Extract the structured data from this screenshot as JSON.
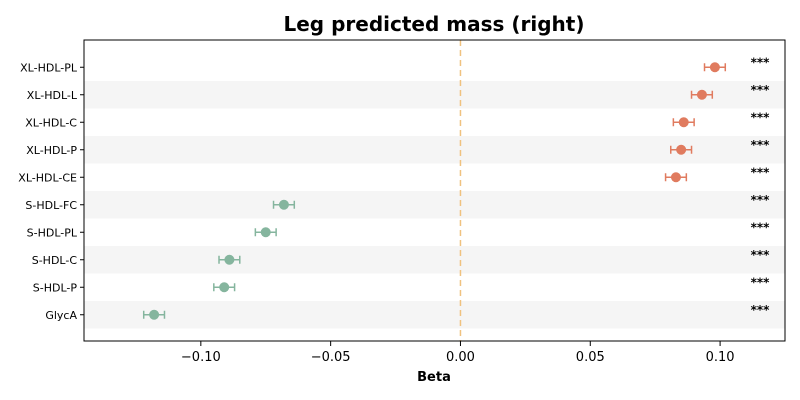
{
  "chart_data": {
    "type": "forest",
    "title": "Leg predicted mass (right)",
    "xlabel": "Beta",
    "xlim": [
      -0.145,
      0.125
    ],
    "xticks": [
      -0.1,
      -0.05,
      0.0,
      0.05,
      0.1
    ],
    "xtick_labels": [
      "−0.10",
      "−0.05",
      "0.00",
      "0.05",
      "0.10"
    ],
    "reference_line": 0.0,
    "reference_color": "#f0c27f",
    "positive_color": "#e07b5f",
    "negative_color": "#85b59e",
    "stripe_color": "#f5f5f5",
    "rows": [
      {
        "label": "XL-HDL-PL",
        "beta": 0.098,
        "lo": 0.094,
        "hi": 0.102,
        "sig": "***"
      },
      {
        "label": "XL-HDL-L",
        "beta": 0.093,
        "lo": 0.089,
        "hi": 0.097,
        "sig": "***"
      },
      {
        "label": "XL-HDL-C",
        "beta": 0.086,
        "lo": 0.082,
        "hi": 0.09,
        "sig": "***"
      },
      {
        "label": "XL-HDL-P",
        "beta": 0.085,
        "lo": 0.081,
        "hi": 0.089,
        "sig": "***"
      },
      {
        "label": "XL-HDL-CE",
        "beta": 0.083,
        "lo": 0.079,
        "hi": 0.087,
        "sig": "***"
      },
      {
        "label": "S-HDL-FC",
        "beta": -0.068,
        "lo": -0.072,
        "hi": -0.064,
        "sig": "***"
      },
      {
        "label": "S-HDL-PL",
        "beta": -0.075,
        "lo": -0.079,
        "hi": -0.071,
        "sig": "***"
      },
      {
        "label": "S-HDL-C",
        "beta": -0.089,
        "lo": -0.093,
        "hi": -0.085,
        "sig": "***"
      },
      {
        "label": "S-HDL-P",
        "beta": -0.091,
        "lo": -0.095,
        "hi": -0.087,
        "sig": "***"
      },
      {
        "label": "GlycA",
        "beta": -0.118,
        "lo": -0.122,
        "hi": -0.114,
        "sig": "***"
      }
    ]
  }
}
